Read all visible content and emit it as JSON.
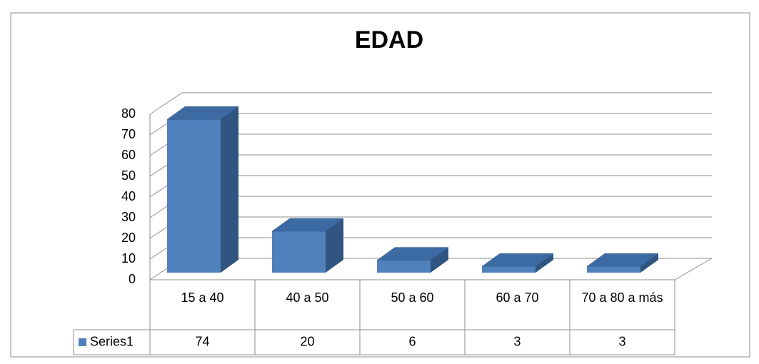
{
  "chart_data": {
    "type": "bar3d",
    "title": "EDAD",
    "categories": [
      "15 a 40",
      "40 a 50",
      "50  a 60",
      "60 a 70",
      "70 a 80 a más"
    ],
    "series": [
      {
        "name": "Series1",
        "color": "#4f81bd",
        "values": [
          74,
          20,
          6,
          3,
          3
        ]
      }
    ],
    "ylim": [
      0,
      80
    ],
    "yticks": [
      0,
      10,
      20,
      30,
      40,
      50,
      60,
      70,
      80
    ],
    "grid": true,
    "data_table": true
  }
}
